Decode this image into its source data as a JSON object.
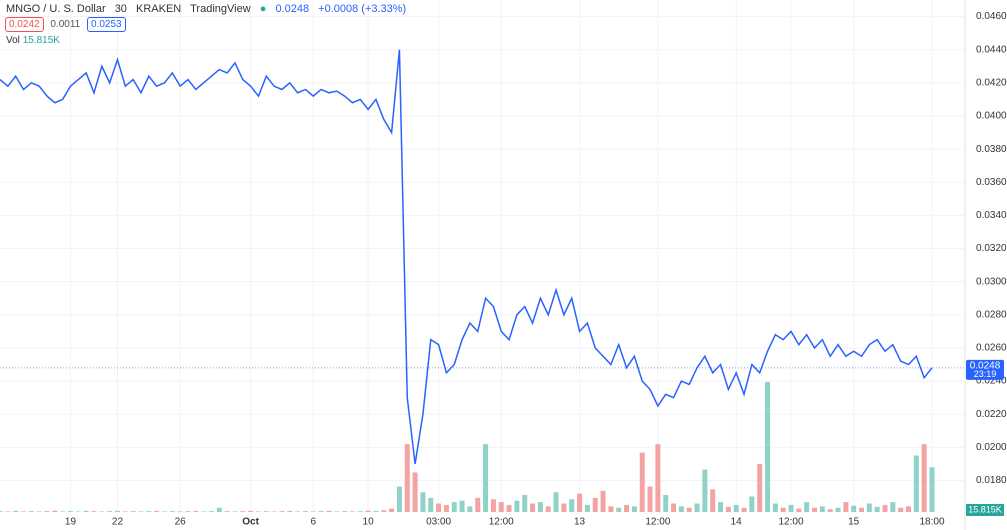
{
  "header": {
    "symbol": "MNGO / U. S. Dollar",
    "interval": "30",
    "exchange": "KRAKEN",
    "source": "TradingView",
    "price": "0.0248",
    "change": "+0.0008 (+3.33%)",
    "bid": "0.0242",
    "spread": "0.0011",
    "ask": "0.0253",
    "vol_label": "Vol",
    "vol_value": "15.815K"
  },
  "chart_data": {
    "type": "line",
    "categories": [
      null,
      null,
      null,
      null,
      null,
      null,
      null,
      null,
      null,
      "19",
      null,
      null,
      null,
      null,
      null,
      "22",
      null,
      null,
      null,
      null,
      null,
      null,
      null,
      "26",
      null,
      null,
      null,
      null,
      null,
      null,
      null,
      null,
      "Oct",
      null,
      null,
      null,
      null,
      null,
      null,
      null,
      "6",
      null,
      null,
      null,
      null,
      null,
      null,
      "10",
      null,
      null,
      null,
      null,
      null,
      null,
      null,
      null,
      "03:00",
      null,
      null,
      null,
      null,
      null,
      null,
      null,
      "12:00",
      null,
      null,
      null,
      null,
      null,
      null,
      null,
      null,
      null,
      "13",
      null,
      null,
      null,
      null,
      null,
      null,
      null,
      null,
      null,
      "12:00",
      null,
      null,
      null,
      null,
      null,
      null,
      null,
      null,
      null,
      "14",
      null,
      null,
      null,
      null,
      null,
      null,
      "12:00",
      null,
      null,
      null,
      null,
      null,
      null,
      null,
      "15",
      null,
      null,
      null,
      null,
      null,
      null,
      null,
      null,
      null,
      "18:00"
    ],
    "series": [
      {
        "name": "MNGO / U. S. Dollar",
        "color": "#2962ff",
        "values": [
          0.0422,
          0.0418,
          0.0424,
          0.0416,
          0.042,
          0.0418,
          0.0412,
          0.0408,
          0.041,
          0.0418,
          0.0422,
          0.0426,
          0.0414,
          0.043,
          0.042,
          0.0434,
          0.0418,
          0.0422,
          0.0414,
          0.0424,
          0.0418,
          0.042,
          0.0426,
          0.0418,
          0.0422,
          0.0416,
          0.042,
          0.0424,
          0.0428,
          0.0426,
          0.0432,
          0.0422,
          0.0418,
          0.0412,
          0.0424,
          0.0418,
          0.0416,
          0.042,
          0.0414,
          0.0416,
          0.0412,
          0.0416,
          0.0414,
          0.0415,
          0.0412,
          0.0408,
          0.041,
          0.0404,
          0.041,
          0.0398,
          0.039,
          0.044,
          0.023,
          0.019,
          0.022,
          0.0265,
          0.0262,
          0.0245,
          0.025,
          0.0265,
          0.0275,
          0.027,
          0.029,
          0.0285,
          0.027,
          0.0265,
          0.028,
          0.0285,
          0.0275,
          0.029,
          0.028,
          0.0295,
          0.028,
          0.029,
          0.027,
          0.0275,
          0.026,
          0.0255,
          0.025,
          0.0262,
          0.0248,
          0.0255,
          0.024,
          0.0235,
          0.0225,
          0.0232,
          0.023,
          0.024,
          0.0238,
          0.0248,
          0.0255,
          0.0245,
          0.025,
          0.0235,
          0.0245,
          0.0232,
          0.025,
          0.0245,
          0.0258,
          0.0268,
          0.0265,
          0.027,
          0.0262,
          0.0268,
          0.026,
          0.0265,
          0.0255,
          0.0262,
          0.0255,
          0.0258,
          0.0255,
          0.0262,
          0.0265,
          0.0258,
          0.0262,
          0.0252,
          0.025,
          0.0255,
          0.0242,
          0.0248
        ]
      }
    ],
    "volume": {
      "name": "Vol",
      "up_color": "#8fd3c8",
      "down_color": "#f4a3a3",
      "values": [
        300,
        200,
        400,
        200,
        300,
        200,
        300,
        500,
        200,
        300,
        200,
        400,
        300,
        200,
        300,
        400,
        200,
        300,
        200,
        300,
        400,
        200,
        300,
        200,
        300,
        400,
        200,
        300,
        1500,
        300,
        200,
        300,
        400,
        200,
        300,
        200,
        300,
        400,
        200,
        300,
        200,
        300,
        400,
        200,
        300,
        200,
        300,
        500,
        400,
        600,
        1200,
        9000,
        24000,
        14000,
        7000,
        5000,
        3000,
        2500,
        3500,
        4000,
        2000,
        5000,
        24000,
        4500,
        3500,
        2500,
        4000,
        6000,
        3000,
        3500,
        2000,
        7000,
        3000,
        4500,
        6500,
        2500,
        5000,
        7500,
        2000,
        1500,
        2500,
        2000,
        21000,
        9000,
        24000,
        6000,
        3000,
        2000,
        1500,
        3000,
        15000,
        8000,
        3500,
        1800,
        2500,
        1500,
        5500,
        17000,
        46000,
        3000,
        1500,
        2500,
        1200,
        3500,
        1500,
        2000,
        1000,
        1500,
        3500,
        2200,
        1500,
        3000,
        1800,
        2500,
        3500,
        1500,
        2000,
        20000,
        24000,
        15815
      ]
    },
    "ylim": [
      0.0161,
      0.047
    ],
    "yticks": [
      {
        "value": 0.018,
        "label": "0.0180"
      },
      {
        "value": 0.02,
        "label": "0.0200"
      },
      {
        "value": 0.022,
        "label": "0.0220"
      },
      {
        "value": 0.024,
        "label": "0.0240"
      },
      {
        "value": 0.026,
        "label": "0.0260"
      },
      {
        "value": 0.028,
        "label": "0.0280"
      },
      {
        "value": 0.03,
        "label": "0.0300"
      },
      {
        "value": 0.032,
        "label": "0.0320"
      },
      {
        "value": 0.034,
        "label": "0.0340"
      },
      {
        "value": 0.036,
        "label": "0.0360"
      },
      {
        "value": 0.038,
        "label": "0.0380"
      },
      {
        "value": 0.04,
        "label": "0.0400"
      },
      {
        "value": 0.042,
        "label": "0.0420"
      },
      {
        "value": 0.044,
        "label": "0.0440"
      },
      {
        "value": 0.046,
        "label": "0.0460"
      }
    ],
    "grid": true,
    "last_price": {
      "value": 0.0248,
      "label": "0.0248",
      "countdown": "23:19",
      "color": "#2962ff"
    }
  }
}
